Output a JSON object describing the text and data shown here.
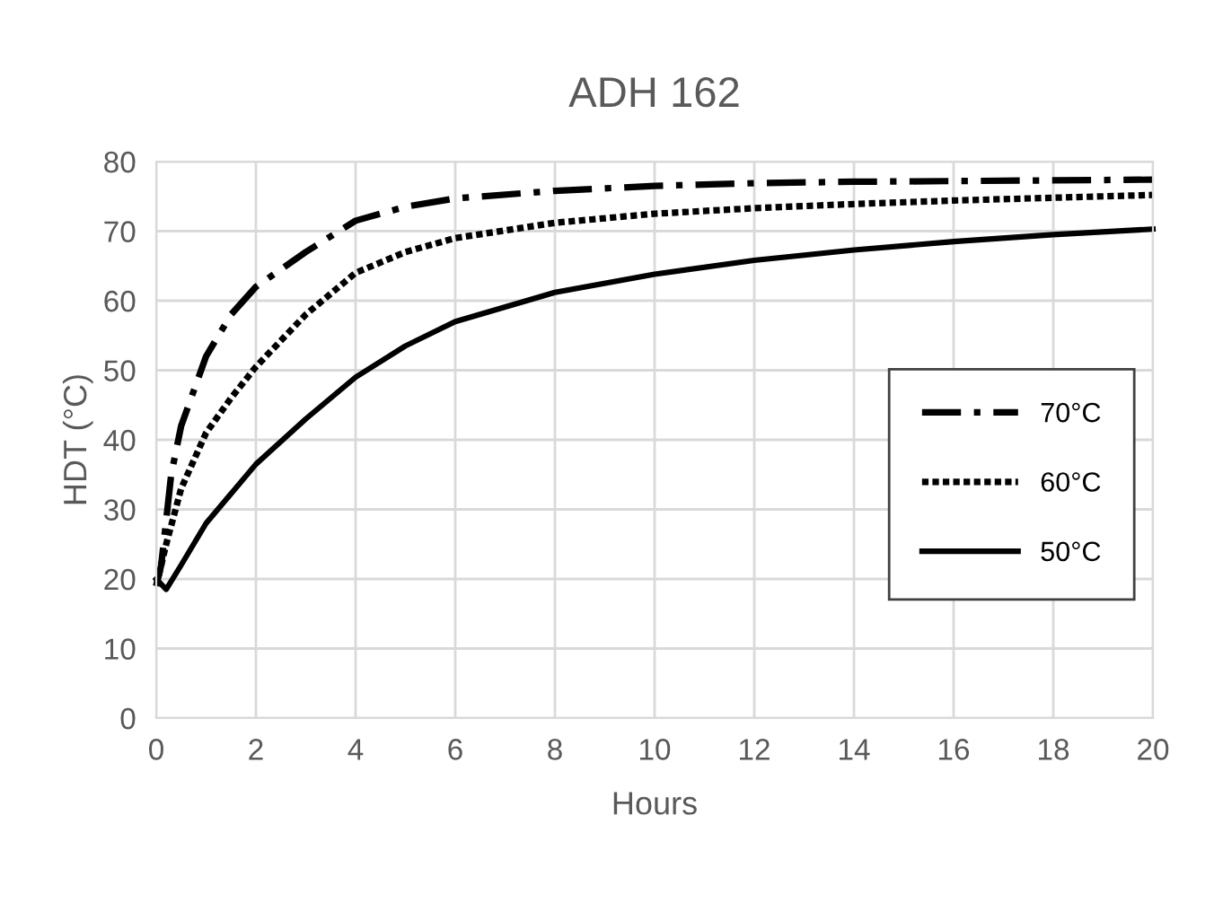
{
  "chart_data": {
    "type": "line",
    "title": "ADH 162",
    "xlabel": "Hours",
    "ylabel": "HDT (°C)",
    "xlim": [
      0,
      20
    ],
    "xticks": [
      0,
      2,
      4,
      6,
      8,
      10,
      12,
      14,
      16,
      18,
      20
    ],
    "ylim": [
      0,
      80
    ],
    "yticks": [
      0,
      10,
      20,
      30,
      40,
      50,
      60,
      70,
      80
    ],
    "grid": true,
    "legend": "right",
    "marker": "none",
    "series": [
      {
        "name": "70°C",
        "color": "#000000",
        "line_style": "dashdot",
        "x": [
          0,
          0.1,
          0.3,
          0.5,
          1,
          1.5,
          2,
          3,
          4,
          5,
          6,
          8,
          10,
          12,
          14,
          16,
          18,
          20
        ],
        "values": [
          19,
          22,
          35,
          42,
          52,
          58,
          62,
          67,
          71.5,
          73.5,
          74.7,
          75.8,
          76.5,
          76.9,
          77.1,
          77.2,
          77.3,
          77.4
        ]
      },
      {
        "name": "60°C",
        "color": "#000000",
        "line_style": "dotted",
        "x": [
          0,
          0.2,
          0.5,
          1,
          1.5,
          2,
          3,
          4,
          5,
          6,
          8,
          10,
          12,
          14,
          16,
          18,
          20
        ],
        "values": [
          19,
          25,
          33,
          41,
          46,
          50.5,
          58,
          64,
          67,
          69,
          71.2,
          72.5,
          73.3,
          73.9,
          74.4,
          74.8,
          75.2
        ]
      },
      {
        "name": "50°C",
        "color": "#000000",
        "line_style": "solid",
        "x": [
          0,
          0.2,
          0.5,
          1,
          2,
          3,
          4,
          5,
          6,
          8,
          10,
          12,
          14,
          16,
          18,
          20
        ],
        "values": [
          20,
          18.5,
          22,
          28,
          36.5,
          43,
          49,
          53.5,
          57,
          61.2,
          63.8,
          65.8,
          67.3,
          68.5,
          69.5,
          70.3
        ]
      }
    ]
  }
}
